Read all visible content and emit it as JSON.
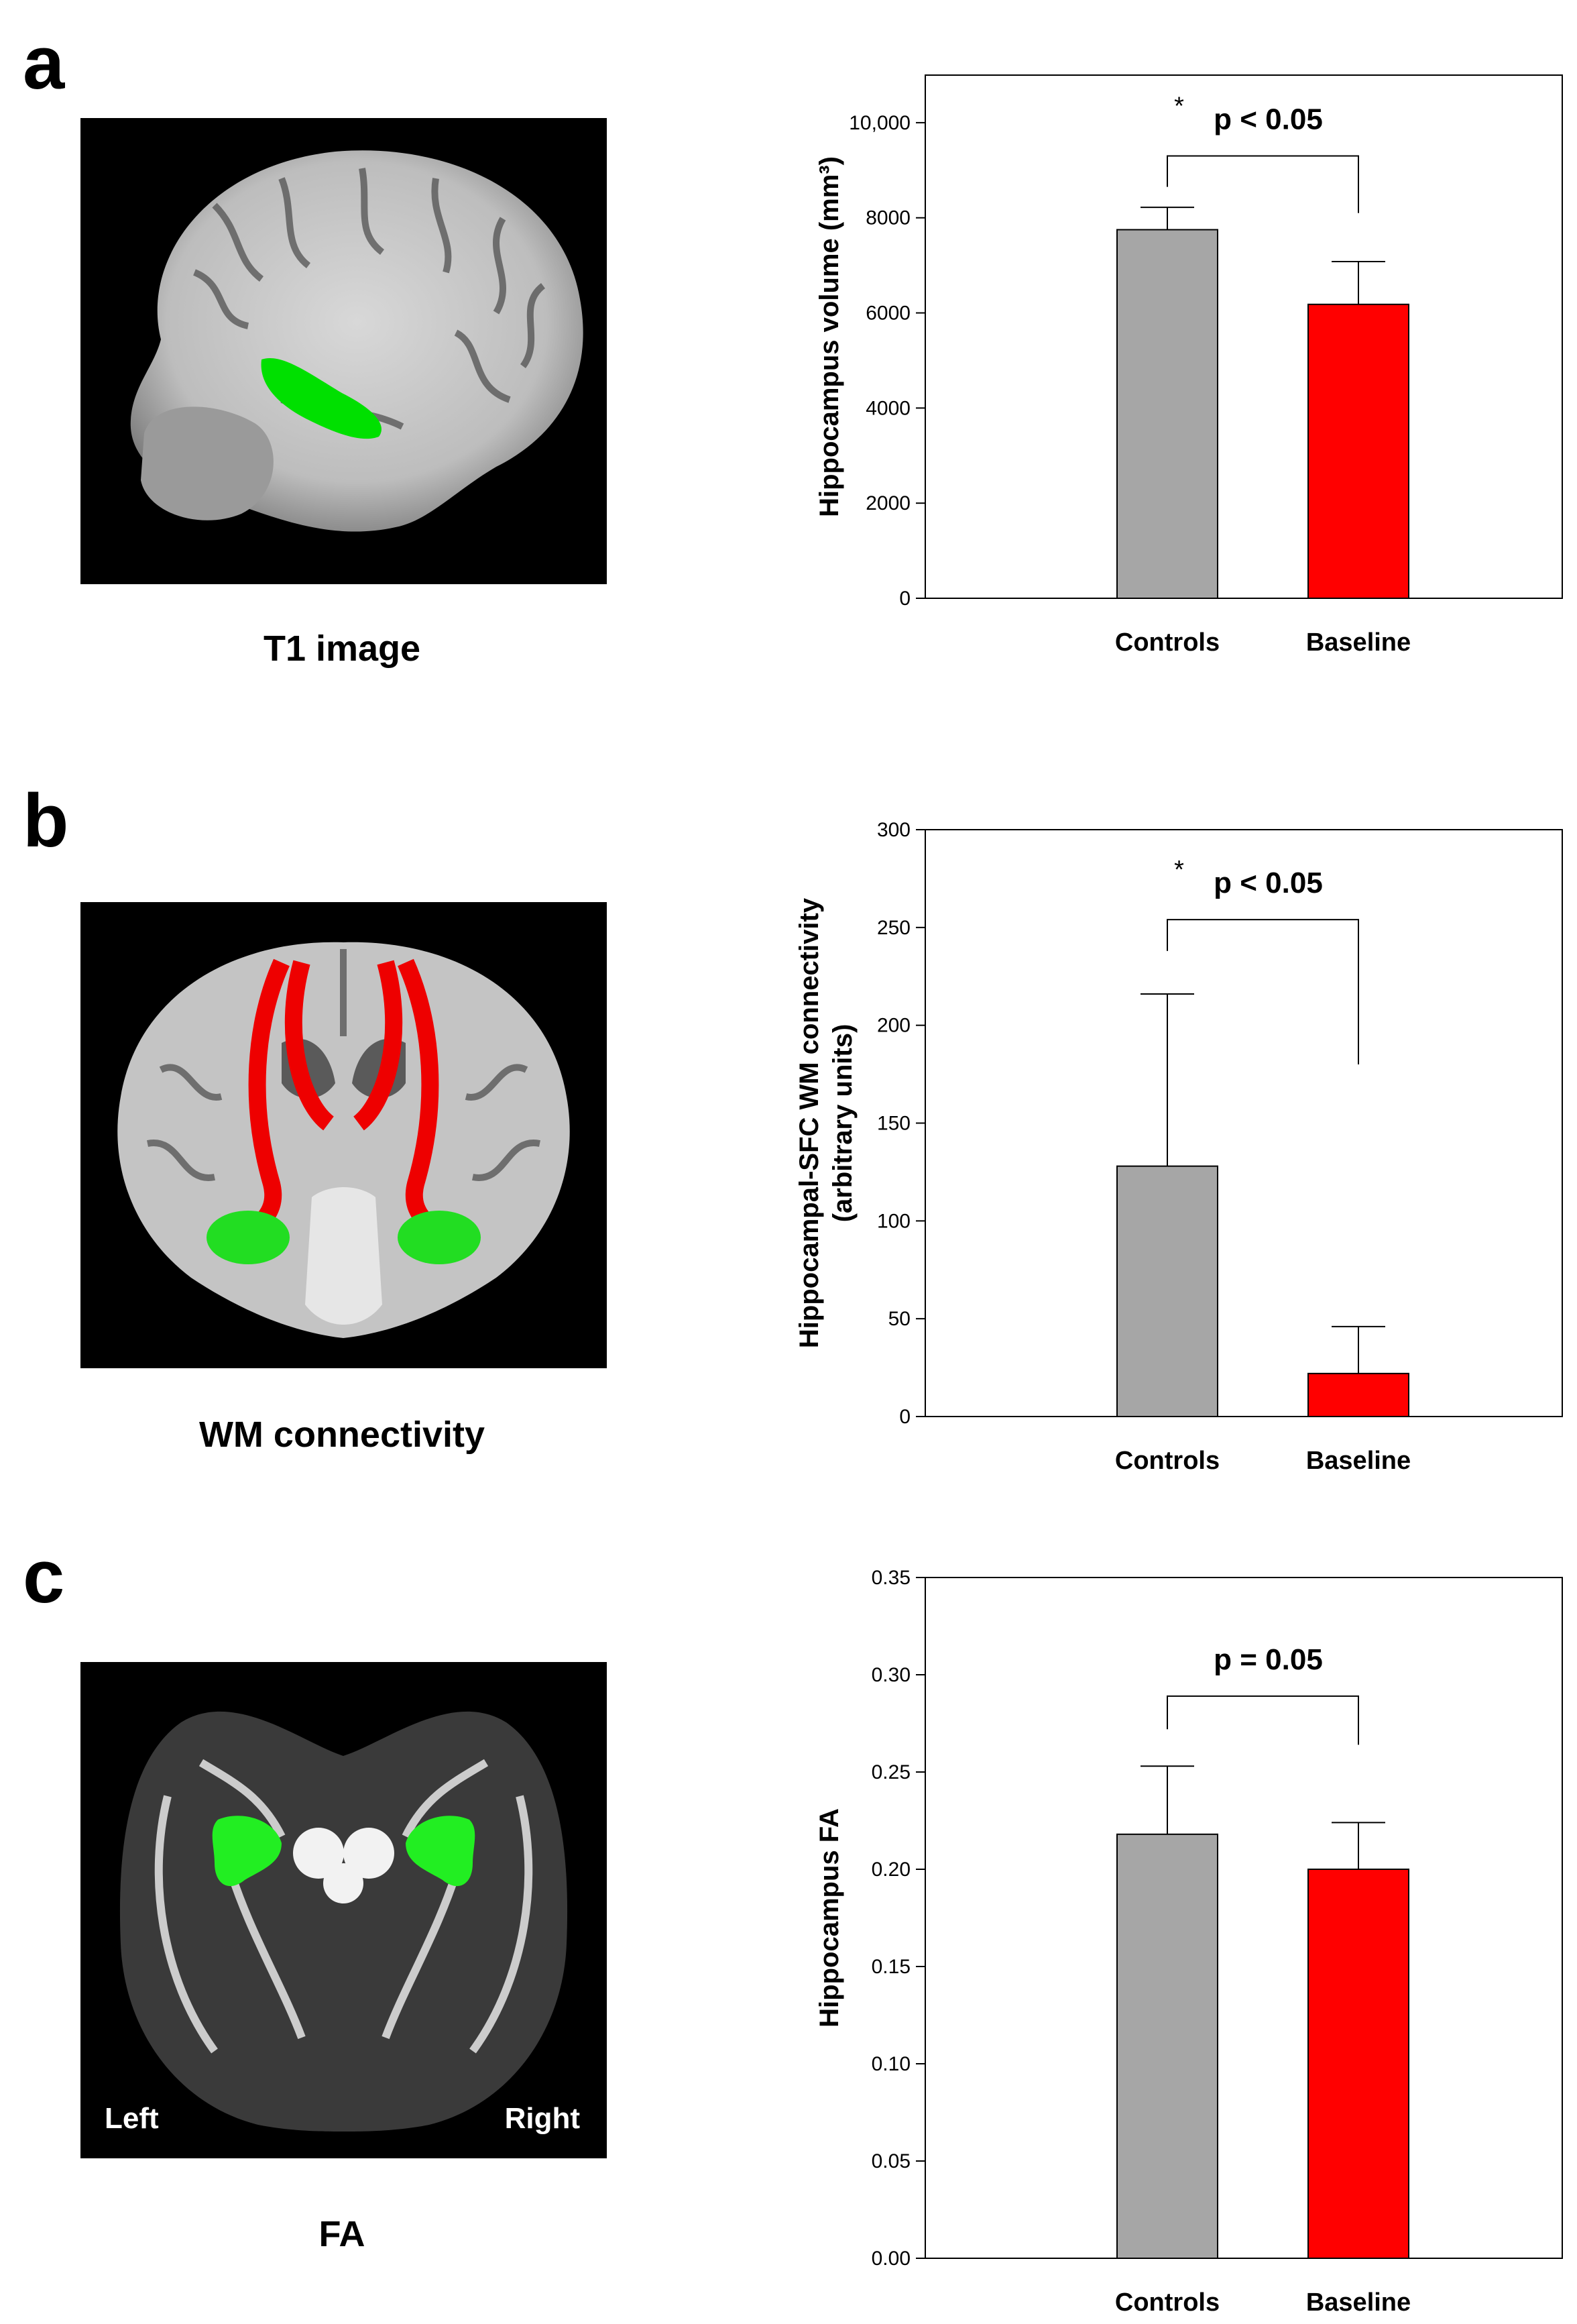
{
  "panels": [
    {
      "letter": "a",
      "image": {
        "caption": "T1 image",
        "alt": "sagittal T1 MRI with hippocampus highlighted in green"
      },
      "chart_data": {
        "type": "bar",
        "categories": [
          "Controls",
          "Baseline"
        ],
        "values": [
          7750,
          6180
        ],
        "errors": [
          470,
          900
        ],
        "colors": [
          "#a6a6a6",
          "#ff0000"
        ],
        "ylabel": "Hippocampus volume (mm³)",
        "ylim": [
          0,
          11000
        ],
        "yticks": [
          0,
          2000,
          4000,
          6000,
          8000,
          10000
        ],
        "ytick_labels": [
          "0",
          "2000",
          "4000",
          "6000",
          "8000",
          "10,000"
        ],
        "significance": {
          "star": "*",
          "text": "p < 0.05",
          "bracket_top": 9300,
          "left_drop": 8650,
          "right_drop": 8100
        }
      }
    },
    {
      "letter": "b",
      "image": {
        "caption": "WM connectivity",
        "alt": "coronal MRI with red tracts and green hippocampi"
      },
      "chart_data": {
        "type": "bar",
        "categories": [
          "Controls",
          "Baseline"
        ],
        "values": [
          128,
          22
        ],
        "errors": [
          88,
          24
        ],
        "colors": [
          "#a6a6a6",
          "#ff0000"
        ],
        "ylabel": "Hippocampal-SFC WM connectivity",
        "ylabel2": "(arbitrary units)",
        "ylim": [
          0,
          300
        ],
        "yticks": [
          0,
          50,
          100,
          150,
          200,
          250,
          300
        ],
        "ytick_labels": [
          "0",
          "50",
          "100",
          "150",
          "200",
          "250",
          "300"
        ],
        "significance": {
          "star": "*",
          "text": "p < 0.05",
          "bracket_top": 254,
          "left_drop": 238,
          "right_drop": 180
        }
      }
    },
    {
      "letter": "c",
      "image": {
        "caption": "FA",
        "alt": "axial FA map with hippocampi in green",
        "left_label": "Left",
        "right_label": "Right"
      },
      "chart_data": {
        "type": "bar",
        "categories": [
          "Controls",
          "Baseline"
        ],
        "values": [
          0.218,
          0.2
        ],
        "errors": [
          0.035,
          0.024
        ],
        "colors": [
          "#a6a6a6",
          "#ff0000"
        ],
        "ylabel": "Hippocampus FA",
        "ylim": [
          0,
          0.35
        ],
        "yticks": [
          0,
          0.05,
          0.1,
          0.15,
          0.2,
          0.25,
          0.3,
          0.35
        ],
        "ytick_labels": [
          "0.00",
          "0.05",
          "0.10",
          "0.15",
          "0.20",
          "0.25",
          "0.30",
          "0.35"
        ],
        "significance": {
          "star": "",
          "text": "p = 0.05",
          "bracket_top": 0.289,
          "left_drop": 0.272,
          "right_drop": 0.264
        }
      }
    }
  ]
}
